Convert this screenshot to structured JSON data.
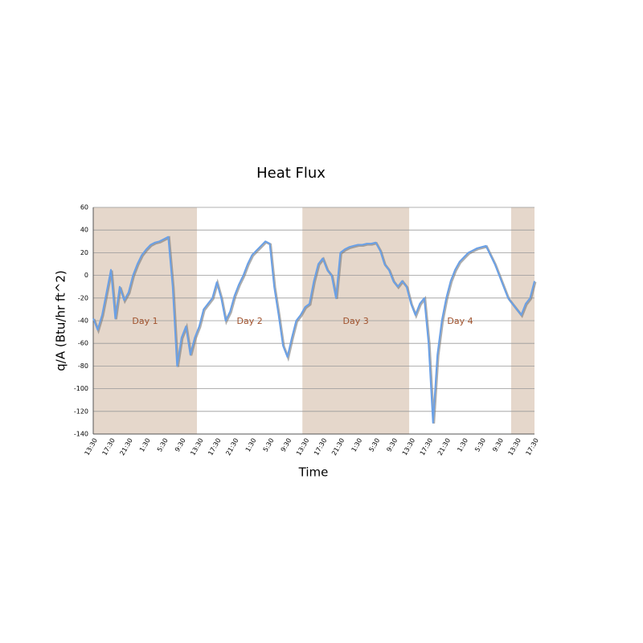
{
  "chart_data": {
    "type": "line",
    "title": "Heat Flux",
    "xlabel": "Time",
    "ylabel": "q/A (Btu/hr ft^2)",
    "categories": [
      "13:30",
      null,
      null,
      null,
      "17:30",
      null,
      null,
      null,
      "21:30",
      null,
      null,
      null,
      "1:30",
      null,
      null,
      null,
      "5:30",
      null,
      null,
      null,
      "9:30",
      null,
      null,
      null,
      "13:30",
      null,
      null,
      null,
      "17:30",
      null,
      null,
      null,
      "21:30",
      null,
      null,
      null,
      "1:30",
      null,
      null,
      null,
      "5:30",
      null,
      null,
      null,
      "9:30",
      null,
      null,
      null,
      "13:30",
      null,
      null,
      null,
      "17:30",
      null,
      null,
      null,
      "21:30",
      null,
      null,
      null,
      "1:30",
      null,
      null,
      null,
      "5:30",
      null,
      null,
      null,
      "9:30",
      null,
      null,
      null,
      "13:30",
      null,
      null,
      null,
      "17:30",
      null,
      null,
      null,
      "21:30",
      null,
      null,
      null,
      "1:30",
      null,
      null,
      null,
      "5:30",
      null,
      null,
      null,
      "9:30",
      null,
      null,
      null,
      "13:30",
      null,
      null,
      null,
      "17:30"
    ],
    "series": [
      {
        "name": "q/A",
        "color": "#6aa0e6",
        "values": [
          -38,
          -48,
          -35,
          -15,
          5,
          -38,
          -10,
          -22,
          -15,
          0,
          10,
          18,
          23,
          27,
          29,
          30,
          32,
          34,
          -10,
          -80,
          -55,
          -45,
          -70,
          -55,
          -45,
          -30,
          -25,
          -20,
          -6,
          -20,
          -40,
          -32,
          -18,
          -8,
          0,
          10,
          18,
          22,
          26,
          30,
          28,
          -10,
          -35,
          -62,
          -72,
          -55,
          -40,
          -35,
          -28,
          -25,
          -5,
          10,
          15,
          5,
          0,
          -20,
          20,
          23,
          25,
          26,
          27,
          27,
          28,
          28,
          29,
          22,
          10,
          5,
          -5,
          -10,
          -5,
          -10,
          -25,
          -35,
          -25,
          -20,
          -60,
          -130,
          -70,
          -40,
          -20,
          -5,
          5,
          12,
          16,
          20,
          22,
          24,
          25,
          26,
          18,
          10,
          0,
          -10,
          -20,
          -25,
          -30,
          -35,
          -25,
          -20,
          -5
        ]
      }
    ],
    "bands": [
      {
        "from": 0,
        "to": 23.5,
        "label": "Day 1",
        "shaded": true
      },
      {
        "from": 23.5,
        "to": 47.4,
        "label": "Day 2",
        "shaded": false
      },
      {
        "from": 47.4,
        "to": 71.6,
        "label": "Day 3",
        "shaded": true
      },
      {
        "from": 71.6,
        "to": 94.7,
        "label": "Day 4",
        "shaded": false
      },
      {
        "from": 94.7,
        "to": 100,
        "shaded": true
      }
    ],
    "band_color": "#e5d7cb",
    "ylim": [
      -140,
      60
    ],
    "yticks": [
      -140,
      -120,
      -100,
      -80,
      -60,
      -40,
      -20,
      0,
      20,
      40,
      60
    ],
    "grid": true
  }
}
